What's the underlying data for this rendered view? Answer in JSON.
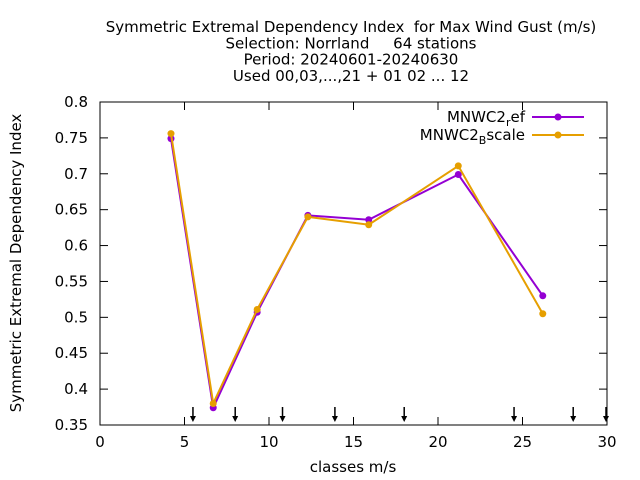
{
  "chart_data": {
    "type": "line",
    "title_lines": [
      "Symmetric Extremal Dependency Index  for Max Wind Gust (m/s)",
      "Selection: Norrland     64 stations",
      "Period: 20240601-20240630",
      "Used 00,03,...,21 + 01 02 ... 12"
    ],
    "xlabel": "classes m/s",
    "ylabel": "Symmetric Extremal Dependency Index",
    "xlim": [
      0,
      30
    ],
    "ylim": [
      0.35,
      0.8
    ],
    "x_ticks": [
      0,
      5,
      10,
      15,
      20,
      25,
      30
    ],
    "x_tick_labels": [
      "0",
      "5",
      "10",
      "15",
      "20",
      "25",
      "30"
    ],
    "y_ticks": [
      0.35,
      0.4,
      0.45,
      0.5,
      0.55,
      0.6,
      0.65,
      0.7,
      0.75,
      0.8
    ],
    "y_tick_labels": [
      "0.35",
      "0.4",
      "0.45",
      "0.5",
      "0.55",
      "0.6",
      "0.65",
      "0.7",
      "0.75",
      "0.8"
    ],
    "grid": false,
    "legend_position": "top-right",
    "class_limit_arrows": [
      5.5,
      8,
      10.8,
      13.9,
      18,
      24.5,
      28,
      30
    ],
    "series": [
      {
        "name_main": "MNWC2",
        "name_sub": "r",
        "name_tail": "ef",
        "color": "#9400d3",
        "x": [
          4.2,
          6.7,
          9.3,
          12.3,
          15.9,
          21.2,
          26.2
        ],
        "values": [
          0.749,
          0.374,
          0.507,
          0.642,
          0.636,
          0.699,
          0.53
        ]
      },
      {
        "name_main": "MNWC2",
        "name_sub": "B",
        "name_tail": "scale",
        "color": "#e69f00",
        "x": [
          4.2,
          6.7,
          9.3,
          12.3,
          15.9,
          21.2,
          26.2
        ],
        "values": [
          0.756,
          0.38,
          0.511,
          0.64,
          0.629,
          0.711,
          0.505
        ]
      }
    ]
  }
}
